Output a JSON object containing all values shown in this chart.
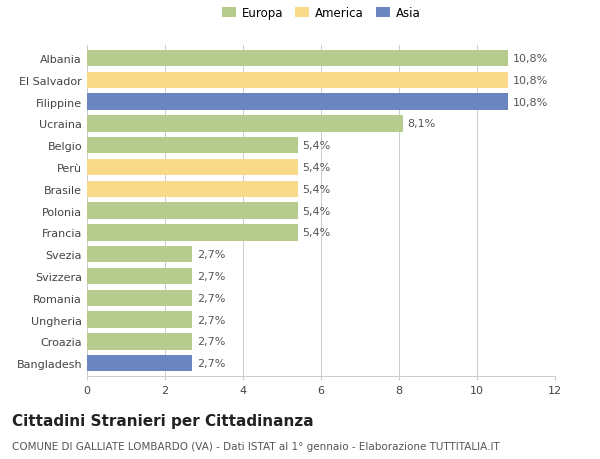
{
  "categories": [
    "Albania",
    "El Salvador",
    "Filippine",
    "Ucraina",
    "Belgio",
    "Perù",
    "Brasile",
    "Polonia",
    "Francia",
    "Svezia",
    "Svizzera",
    "Romania",
    "Ungheria",
    "Croazia",
    "Bangladesh"
  ],
  "values": [
    10.8,
    10.8,
    10.8,
    8.1,
    5.4,
    5.4,
    5.4,
    5.4,
    5.4,
    2.7,
    2.7,
    2.7,
    2.7,
    2.7,
    2.7
  ],
  "labels": [
    "10,8%",
    "10,8%",
    "10,8%",
    "8,1%",
    "5,4%",
    "5,4%",
    "5,4%",
    "5,4%",
    "5,4%",
    "2,7%",
    "2,7%",
    "2,7%",
    "2,7%",
    "2,7%",
    "2,7%"
  ],
  "continent": [
    "Europa",
    "America",
    "Asia",
    "Europa",
    "Europa",
    "America",
    "America",
    "Europa",
    "Europa",
    "Europa",
    "Europa",
    "Europa",
    "Europa",
    "Europa",
    "Asia"
  ],
  "colors": {
    "Europa": "#b5cc8e",
    "America": "#f9d98a",
    "Asia": "#6b85c0"
  },
  "legend_labels": [
    "Europa",
    "America",
    "Asia"
  ],
  "legend_colors": [
    "#b5cc8e",
    "#f9d98a",
    "#6b85c0"
  ],
  "xlim": [
    0,
    12
  ],
  "xticks": [
    0,
    2,
    4,
    6,
    8,
    10,
    12
  ],
  "title": "Cittadini Stranieri per Cittadinanza",
  "subtitle": "COMUNE DI GALLIATE LOMBARDO (VA) - Dati ISTAT al 1° gennaio - Elaborazione TUTTITALIA.IT",
  "bg_color": "#ffffff",
  "grid_color": "#cccccc",
  "bar_height": 0.75,
  "label_fontsize": 8,
  "tick_fontsize": 8,
  "title_fontsize": 11,
  "subtitle_fontsize": 7.5
}
